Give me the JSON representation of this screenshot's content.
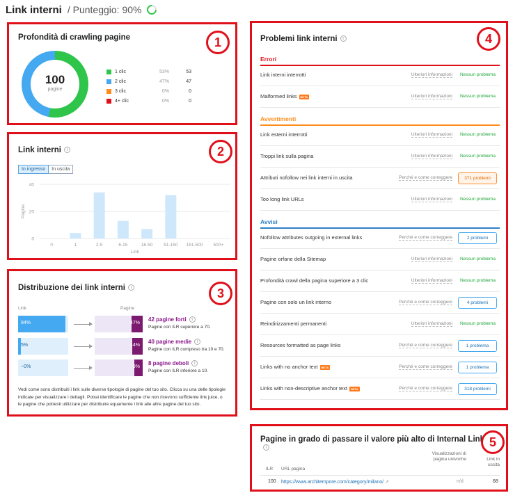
{
  "header": {
    "title": "Link interni",
    "score": "/ Punteggio: 90%"
  },
  "p1": {
    "badge": "1",
    "title": "Profondità di crawling pagine",
    "total": "100",
    "total_label": "pagine",
    "legend": [
      {
        "name": "1 clic",
        "pct": "53%",
        "count": "53",
        "color": "#2ec54a"
      },
      {
        "name": "2 clic",
        "pct": "47%",
        "count": "47",
        "color": "#44a9f0"
      },
      {
        "name": "3 clic",
        "pct": "0%",
        "count": "0",
        "color": "#ff8c1a"
      },
      {
        "name": "4+ clic",
        "pct": "0%",
        "count": "0",
        "color": "#e0101b"
      }
    ]
  },
  "p2": {
    "badge": "2",
    "title": "Link interni",
    "tab_in": "In ingresso",
    "tab_out": "In uscita"
  },
  "chart_data": {
    "type": "bar",
    "categories": [
      "0",
      "1",
      "2-5",
      "6-15",
      "16-50",
      "51-150",
      "151-500",
      "500+"
    ],
    "values": [
      0,
      4,
      34,
      13,
      7,
      32,
      0,
      0
    ],
    "ylim": [
      0,
      40
    ],
    "yticks": [
      "0",
      "20",
      "40"
    ],
    "xlabel": "Link",
    "ylabel": "Pagine",
    "bar_color": "#cfe7fb"
  },
  "p3": {
    "badge": "3",
    "title": "Distribuzione dei link interni",
    "col_link": "Link",
    "col_pages": "Pagine",
    "rows": [
      {
        "link_pct": "94%",
        "link_val": 94,
        "page_pct": "47%",
        "page_val": 47,
        "title": "42 pagine forti",
        "sub": "Pagine con ILR superiore a 70."
      },
      {
        "link_pct": "5%",
        "link_val": 5,
        "page_pct": "44%",
        "page_val": 44,
        "title": "40 pagine medie",
        "sub": "Pagine con ILR compreso tra 10 e 70."
      },
      {
        "link_pct": "~0%",
        "link_val": 0,
        "page_pct": "9%",
        "page_val": 9,
        "title": "8 pagine deboli",
        "sub": "Pagine con ILR inferiore a 10."
      }
    ],
    "description": "Vedi come sono distribuiti i link sulle diverse tipologie di pagine del tuo sito. Clicca su una delle tipologie indicate per visualizzare i dettagli. Potrai identificare le pagine che non ricevono sufficiente link juice, o le pagine che potresti utilizzare per distribuire equamente i link alle altre pagine del tuo sito."
  },
  "p4": {
    "badge": "4",
    "title": "Problemi link interni",
    "errors_label": "Errori",
    "warnings_label": "Avvertimenti",
    "notices_label": "Avvisi",
    "more_info": "Ulteriori informazioni",
    "why_fix": "Perché e come correggere",
    "no_problem": "Nessun problema",
    "beta": "BETA",
    "errors": [
      {
        "name": "Link interni interrotti"
      },
      {
        "name": "Malformed links",
        "beta": true
      }
    ],
    "warnings": [
      {
        "name": "Link esterni interrotti"
      },
      {
        "name": "Troppi link sulla pagina"
      },
      {
        "name": "Attributi nofollow nei link interni in uscita",
        "problems": "371 problemi"
      },
      {
        "name": "Too long link URLs"
      }
    ],
    "notices": [
      {
        "name": "Nofollow attributes outgoing in external links",
        "problems": "2 problemi"
      },
      {
        "name": "Pagine orfane della Sitemap"
      },
      {
        "name": "Profondità crawl della pagina superiore a 3 clic"
      },
      {
        "name": "Pagine con solo un link interno",
        "problems": "4 problemi"
      },
      {
        "name": "Reindirizzamenti permanenti"
      },
      {
        "name": "Resources formatted as page links",
        "problems": "1 problema"
      },
      {
        "name": "Links with no anchor text",
        "beta": true,
        "problems": "1 problema"
      },
      {
        "name": "Links with non-descriptive anchor text",
        "beta": true,
        "problems": "318 problemi"
      }
    ]
  },
  "p5": {
    "badge": "5",
    "title": "Pagine in grado di passare il valore più alto di Internal LinkRank",
    "col_ilr": "ILR",
    "col_url": "URL pagina",
    "col_views": "Visualizzazioni di pagina univoche",
    "col_links": "Link in uscita",
    "row": {
      "ilr": "100",
      "url": "https://www.architempore.com/category/milano/",
      "views": "n/d",
      "links": "68"
    }
  }
}
